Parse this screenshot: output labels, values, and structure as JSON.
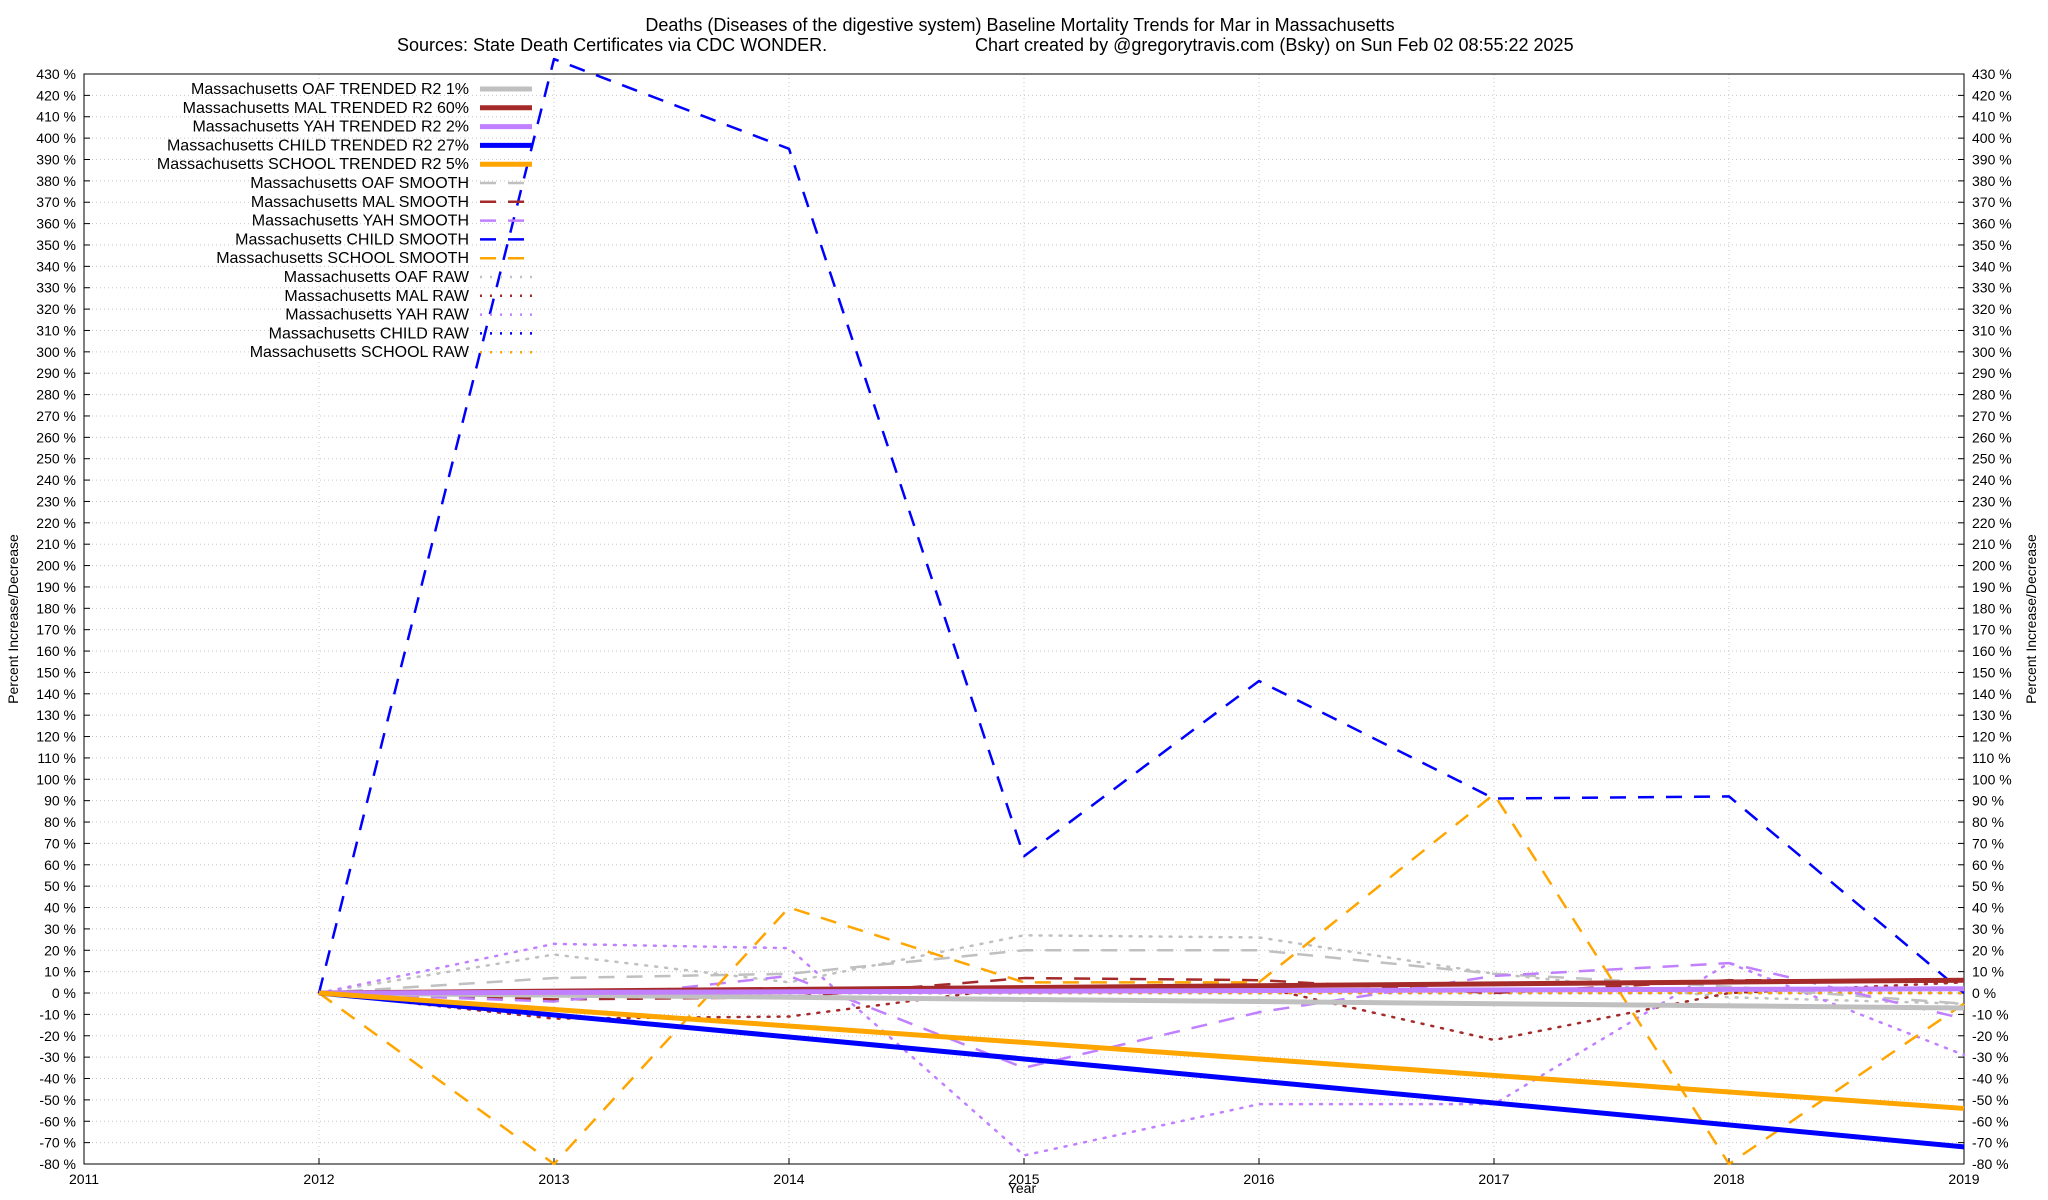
{
  "chart_data": {
    "type": "line",
    "title": "Deaths (Diseases of the digestive system)  Baseline Mortality Trends for Mar in Massachusetts",
    "subtitle_left": "Sources: State Death Certificates via CDC WONDER.",
    "subtitle_right": "Chart created by @gregorytravis.com (Bsky) on Sun Feb 02 08:55:22 2025",
    "xlabel": "Year",
    "ylabel": "Percent Increase/Decrease",
    "y2label": "Percent Increase/Decrease",
    "xlim": [
      2011,
      2019
    ],
    "ylim": [
      -80,
      430
    ],
    "x_ticks": [
      2011,
      2012,
      2013,
      2014,
      2015,
      2016,
      2017,
      2018,
      2019
    ],
    "y_tick_step": 10,
    "y_tick_suffix": " %",
    "grid": true,
    "legend_position": "top-left",
    "series": [
      {
        "name": "Massachusetts OAF TRENDED R2  1%",
        "style": "solid",
        "color": "#c0c0c0",
        "x": [
          2012,
          2019
        ],
        "values": [
          0,
          -7
        ]
      },
      {
        "name": "Massachusetts MAL TRENDED R2  60%",
        "style": "solid",
        "color": "#a52a2a",
        "x": [
          2012,
          2019
        ],
        "values": [
          0,
          6
        ]
      },
      {
        "name": "Massachusetts YAH TRENDED R2  2%",
        "style": "solid",
        "color": "#c080ff",
        "x": [
          2012,
          2019
        ],
        "values": [
          0,
          2
        ]
      },
      {
        "name": "Massachusetts CHILD TRENDED R2  27%",
        "style": "solid",
        "color": "#0000ff",
        "x": [
          2012,
          2019
        ],
        "values": [
          0,
          -72
        ]
      },
      {
        "name": "Massachusetts SCHOOL TRENDED R2  5%",
        "style": "solid",
        "color": "#ffa500",
        "x": [
          2012,
          2019
        ],
        "values": [
          0,
          -54
        ]
      },
      {
        "name": "Massachusetts OAF SMOOTH",
        "style": "dashed",
        "color": "#c0c0c0",
        "x": [
          2012,
          2013,
          2014,
          2015,
          2016,
          2017,
          2018,
          2019
        ],
        "values": [
          0,
          7,
          9,
          20,
          20,
          9,
          3,
          -5
        ]
      },
      {
        "name": "Massachusetts MAL SMOOTH",
        "style": "dashed",
        "color": "#a52a2a",
        "x": [
          2012,
          2013,
          2014,
          2015,
          2016,
          2017,
          2018,
          2019
        ],
        "values": [
          0,
          -3,
          -2,
          7,
          6,
          0,
          6,
          6
        ]
      },
      {
        "name": "Massachusetts YAH SMOOTH",
        "style": "dashed",
        "color": "#c080ff",
        "x": [
          2012,
          2013,
          2014,
          2015,
          2016,
          2017,
          2018,
          2019
        ],
        "values": [
          0,
          -4,
          8,
          -35,
          -9,
          8,
          14,
          -12
        ]
      },
      {
        "name": "Massachusetts CHILD SMOOTH",
        "style": "dashed",
        "color": "#0000ff",
        "x": [
          2012,
          2013,
          2014,
          2015,
          2016,
          2017,
          2018,
          2019
        ],
        "values": [
          0,
          437,
          395,
          64,
          146,
          91,
          92,
          0
        ]
      },
      {
        "name": "Massachusetts SCHOOL SMOOTH",
        "style": "dashed",
        "color": "#ffa500",
        "x": [
          2012,
          2013,
          2014,
          2015,
          2016,
          2017,
          2018,
          2019
        ],
        "values": [
          0,
          -80,
          40,
          5,
          5,
          93,
          -80,
          -5
        ]
      },
      {
        "name": "Massachusetts OAF RAW",
        "style": "dotted",
        "color": "#c0c0c0",
        "x": [
          2012,
          2013,
          2014,
          2015,
          2016,
          2017,
          2018,
          2019
        ],
        "values": [
          0,
          18,
          5,
          27,
          26,
          9,
          -2,
          -5
        ]
      },
      {
        "name": "Massachusetts MAL RAW",
        "style": "dotted",
        "color": "#a52a2a",
        "x": [
          2012,
          2013,
          2014,
          2015,
          2016,
          2017,
          2018,
          2019
        ],
        "values": [
          0,
          -12,
          -11,
          3,
          3,
          -22,
          0,
          5
        ]
      },
      {
        "name": "Massachusetts YAH RAW",
        "style": "dotted",
        "color": "#c080ff",
        "x": [
          2012,
          2013,
          2014,
          2015,
          2016,
          2017,
          2018,
          2019
        ],
        "values": [
          0,
          23,
          21,
          -76,
          -52,
          -52,
          14,
          -29
        ]
      },
      {
        "name": "Massachusetts CHILD RAW",
        "style": "dotted",
        "color": "#0000ff",
        "x": [
          2012,
          2013,
          2014,
          2015,
          2016,
          2017,
          2018,
          2019
        ],
        "values": [
          0,
          0,
          0,
          0,
          0,
          0,
          0,
          0
        ]
      },
      {
        "name": "Massachusetts SCHOOL RAW",
        "style": "dotted",
        "color": "#ffa500",
        "x": [
          2012,
          2013,
          2014,
          2015,
          2016,
          2017,
          2018,
          2019
        ],
        "values": [
          0,
          0,
          0,
          0,
          0,
          0,
          0,
          0
        ]
      }
    ]
  }
}
